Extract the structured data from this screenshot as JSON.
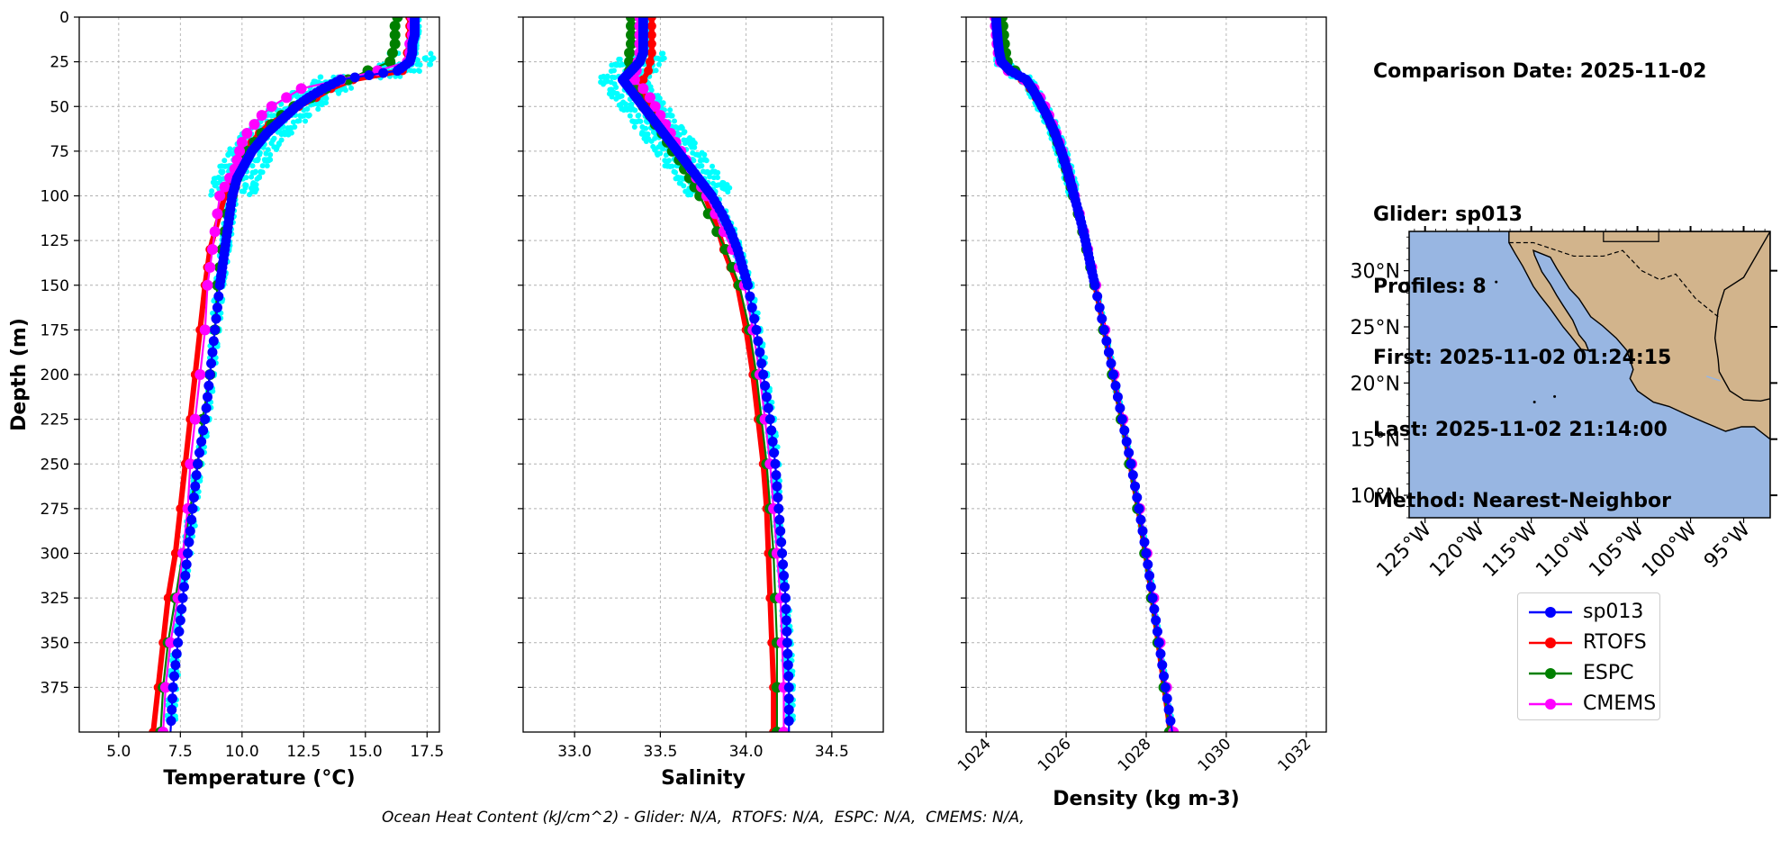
{
  "info_lines": [
    "Comparison Date: 2025-11-02",
    "",
    "Glider: sp013",
    "Profiles: 8",
    "First: 2025-11-02 01:24:15",
    "Last: 2025-11-02 21:14:00",
    "Method: Nearest-Neighbor"
  ],
  "footnote": "Ocean Heat Content (kJ/cm^2) - Glider: N/A,  RTOFS: N/A,  ESPC: N/A,  CMEMS: N/A,",
  "colors": {
    "sp013": "#0000ff",
    "RTOFS": "#ff0000",
    "ESPC": "#008000",
    "CMEMS": "#ff00ff",
    "glider_profiles": "#00ffff",
    "ocean": "#98b6e2",
    "land": "#d2b48c"
  },
  "legend": [
    {
      "name": "sp013",
      "color": "#0000ff"
    },
    {
      "name": "RTOFS",
      "color": "#ff0000"
    },
    {
      "name": "ESPC",
      "color": "#008000"
    },
    {
      "name": "CMEMS",
      "color": "#ff00ff"
    }
  ],
  "map": {
    "lat_ticks": [
      "10°N",
      "15°N",
      "20°N",
      "25°N",
      "30°N"
    ],
    "lat_values": [
      10,
      15,
      20,
      25,
      30
    ],
    "lon_ticks": [
      "125°W",
      "120°W",
      "115°W",
      "110°W",
      "105°W",
      "100°W",
      "95°W"
    ],
    "lon_values": [
      -125,
      -120,
      -115,
      -110,
      -105,
      -100,
      -95
    ],
    "lon_range": [
      -126.5,
      -92.5
    ],
    "lat_range": [
      8,
      33.5
    ]
  },
  "chart_data": [
    {
      "type": "line",
      "xlabel": "Temperature (°C)",
      "ylabel": "Depth (m)",
      "xlim": [
        3.4,
        18.0
      ],
      "ylim": [
        400,
        0
      ],
      "xticks": [
        5.0,
        7.5,
        10.0,
        12.5,
        15.0,
        17.5
      ],
      "xtick_labels": [
        "5.0",
        "7.5",
        "10.0",
        "12.5",
        "15.0",
        "17.5"
      ],
      "yticks": [
        0,
        25,
        50,
        75,
        100,
        125,
        150,
        175,
        200,
        225,
        250,
        275,
        300,
        325,
        350,
        375
      ],
      "ytick_labels": [
        "0",
        "25",
        "50",
        "75",
        "100",
        "125",
        "150",
        "175",
        "200",
        "225",
        "250",
        "275",
        "300",
        "325",
        "350",
        "375"
      ],
      "grid": true,
      "depth": [
        0,
        5,
        10,
        15,
        20,
        25,
        30,
        35,
        40,
        45,
        50,
        55,
        60,
        65,
        70,
        75,
        80,
        85,
        90,
        95,
        100,
        110,
        120,
        130,
        140,
        150,
        175,
        200,
        225,
        250,
        275,
        300,
        325,
        350,
        375,
        400
      ],
      "series": [
        {
          "name": "sp013",
          "values": [
            17.0,
            17.0,
            17.0,
            16.9,
            16.9,
            16.8,
            16.3,
            14.0,
            13.3,
            12.7,
            12.2,
            11.8,
            11.4,
            11.0,
            10.7,
            10.4,
            10.2,
            10.0,
            9.8,
            9.7,
            9.6,
            9.5,
            9.4,
            9.3,
            9.2,
            9.1,
            8.9,
            8.7,
            8.5,
            8.2,
            8.0,
            7.8,
            7.6,
            7.4,
            7.2,
            7.1
          ]
        },
        {
          "name": "RTOFS",
          "values": [
            16.8,
            16.8,
            16.8,
            16.8,
            16.7,
            16.7,
            16.5,
            14.5,
            13.6,
            13.0,
            12.3,
            11.7,
            11.1,
            10.7,
            10.4,
            10.2,
            10.0,
            9.8,
            9.6,
            9.5,
            9.3,
            9.1,
            8.9,
            8.7,
            8.6,
            8.5,
            8.3,
            8.1,
            7.9,
            7.7,
            7.5,
            7.3,
            7.0,
            6.8,
            6.6,
            6.4
          ]
        },
        {
          "name": "ESPC",
          "values": [
            16.3,
            16.2,
            16.2,
            16.2,
            16.1,
            16.0,
            15.1,
            14.3,
            13.4,
            12.8,
            12.1,
            11.6,
            11.2,
            10.8,
            10.5,
            10.2,
            10.0,
            9.9,
            9.8,
            9.7,
            9.6,
            9.4,
            9.3,
            9.2,
            9.1,
            9.0,
            8.9,
            8.7,
            8.4,
            8.2,
            7.9,
            7.6,
            7.3,
            7.0,
            6.8,
            6.7
          ]
        },
        {
          "name": "CMEMS",
          "values": [
            16.9,
            16.9,
            16.9,
            16.8,
            16.8,
            16.7,
            15.5,
            14.0,
            12.4,
            11.8,
            11.2,
            10.8,
            10.5,
            10.2,
            10.0,
            9.9,
            9.8,
            9.7,
            9.5,
            9.3,
            9.1,
            9.0,
            8.9,
            8.8,
            8.7,
            8.6,
            8.5,
            8.3,
            8.1,
            7.9,
            7.8,
            7.6,
            7.4,
            7.1,
            6.9,
            6.8
          ]
        }
      ]
    },
    {
      "type": "line",
      "xlabel": "Salinity",
      "xlim": [
        32.7,
        34.8
      ],
      "ylim": [
        400,
        0
      ],
      "xticks": [
        33.0,
        33.5,
        34.0,
        34.5
      ],
      "xtick_labels": [
        "33.0",
        "33.5",
        "34.0",
        "34.5"
      ],
      "grid": true,
      "depth": [
        0,
        5,
        10,
        15,
        20,
        25,
        30,
        35,
        40,
        45,
        50,
        55,
        60,
        65,
        70,
        75,
        80,
        85,
        90,
        95,
        100,
        110,
        120,
        130,
        140,
        150,
        175,
        200,
        225,
        250,
        275,
        300,
        325,
        350,
        375,
        400
      ],
      "series": [
        {
          "name": "sp013",
          "values": [
            33.4,
            33.4,
            33.4,
            33.4,
            33.4,
            33.38,
            33.33,
            33.28,
            33.32,
            33.36,
            33.4,
            33.44,
            33.48,
            33.52,
            33.56,
            33.6,
            33.64,
            33.68,
            33.72,
            33.76,
            33.8,
            33.86,
            33.91,
            33.95,
            33.98,
            34.01,
            34.06,
            34.1,
            34.14,
            34.17,
            34.19,
            34.21,
            34.23,
            34.24,
            34.25,
            34.25
          ]
        },
        {
          "name": "RTOFS",
          "values": [
            33.45,
            33.45,
            33.45,
            33.45,
            33.45,
            33.44,
            33.43,
            33.4,
            33.38,
            33.4,
            33.43,
            33.46,
            33.49,
            33.53,
            33.56,
            33.6,
            33.64,
            33.67,
            33.7,
            33.73,
            33.76,
            33.8,
            33.84,
            33.87,
            33.91,
            33.95,
            34.0,
            34.04,
            34.07,
            34.1,
            34.12,
            34.13,
            34.14,
            34.15,
            34.16,
            34.16
          ]
        },
        {
          "name": "ESPC",
          "values": [
            33.33,
            33.33,
            33.33,
            33.33,
            33.32,
            33.32,
            33.32,
            33.32,
            33.34,
            33.37,
            33.4,
            33.44,
            33.47,
            33.51,
            33.54,
            33.57,
            33.61,
            33.64,
            33.67,
            33.7,
            33.73,
            33.78,
            33.83,
            33.88,
            33.92,
            33.96,
            34.02,
            34.06,
            34.09,
            34.12,
            34.14,
            34.16,
            34.17,
            34.18,
            34.18,
            34.18
          ]
        },
        {
          "name": "CMEMS",
          "values": [
            33.38,
            33.38,
            33.38,
            33.38,
            33.38,
            33.37,
            33.36,
            33.35,
            33.4,
            33.44,
            33.47,
            33.5,
            33.53,
            33.56,
            33.59,
            33.62,
            33.65,
            33.68,
            33.71,
            33.74,
            33.77,
            33.82,
            33.87,
            33.92,
            33.96,
            33.99,
            34.04,
            34.08,
            34.11,
            34.14,
            34.16,
            34.18,
            34.2,
            34.21,
            34.22,
            34.22
          ]
        }
      ]
    },
    {
      "type": "line",
      "xlabel": "Density (kg m-3)",
      "xlim": [
        1023.5,
        1032.5
      ],
      "ylim": [
        400,
        0
      ],
      "xticks": [
        1024,
        1026,
        1028,
        1030,
        1032
      ],
      "xtick_labels": [
        "1024",
        "1026",
        "1028",
        "1030",
        "1032"
      ],
      "grid": true,
      "depth": [
        0,
        5,
        10,
        15,
        20,
        25,
        30,
        35,
        40,
        45,
        50,
        55,
        60,
        65,
        70,
        75,
        80,
        85,
        90,
        95,
        100,
        110,
        120,
        130,
        140,
        150,
        175,
        200,
        225,
        250,
        275,
        300,
        325,
        350,
        375,
        400
      ],
      "series": [
        {
          "name": "sp013",
          "values": [
            1024.25,
            1024.26,
            1024.28,
            1024.3,
            1024.33,
            1024.38,
            1024.6,
            1025.0,
            1025.15,
            1025.28,
            1025.4,
            1025.52,
            1025.62,
            1025.72,
            1025.8,
            1025.88,
            1025.95,
            1026.02,
            1026.08,
            1026.14,
            1026.2,
            1026.32,
            1026.43,
            1026.53,
            1026.62,
            1026.72,
            1026.95,
            1027.18,
            1027.4,
            1027.62,
            1027.82,
            1028.0,
            1028.16,
            1028.32,
            1028.48,
            1028.65
          ]
        },
        {
          "name": "RTOFS",
          "values": [
            1024.27,
            1024.28,
            1024.3,
            1024.32,
            1024.35,
            1024.4,
            1024.55,
            1024.9,
            1025.1,
            1025.25,
            1025.38,
            1025.5,
            1025.6,
            1025.7,
            1025.78,
            1025.86,
            1025.94,
            1026.01,
            1026.08,
            1026.14,
            1026.2,
            1026.32,
            1026.42,
            1026.52,
            1026.62,
            1026.72,
            1026.95,
            1027.17,
            1027.39,
            1027.6,
            1027.8,
            1027.98,
            1028.15,
            1028.3,
            1028.45,
            1028.6
          ]
        },
        {
          "name": "ESPC",
          "values": [
            1024.4,
            1024.42,
            1024.44,
            1024.46,
            1024.49,
            1024.53,
            1024.72,
            1024.95,
            1025.15,
            1025.3,
            1025.42,
            1025.52,
            1025.62,
            1025.71,
            1025.79,
            1025.87,
            1025.94,
            1026.0,
            1026.06,
            1026.12,
            1026.18,
            1026.3,
            1026.41,
            1026.51,
            1026.61,
            1026.71,
            1026.93,
            1027.15,
            1027.37,
            1027.58,
            1027.78,
            1027.96,
            1028.13,
            1028.29,
            1028.44,
            1028.58
          ]
        },
        {
          "name": "CMEMS",
          "values": [
            1024.22,
            1024.23,
            1024.25,
            1024.27,
            1024.3,
            1024.35,
            1024.55,
            1024.95,
            1025.2,
            1025.35,
            1025.47,
            1025.57,
            1025.66,
            1025.75,
            1025.83,
            1025.9,
            1025.97,
            1026.03,
            1026.09,
            1026.15,
            1026.21,
            1026.33,
            1026.44,
            1026.54,
            1026.64,
            1026.74,
            1026.97,
            1027.2,
            1027.42,
            1027.64,
            1027.84,
            1028.02,
            1028.19,
            1028.35,
            1028.51,
            1028.68
          ]
        }
      ]
    }
  ]
}
